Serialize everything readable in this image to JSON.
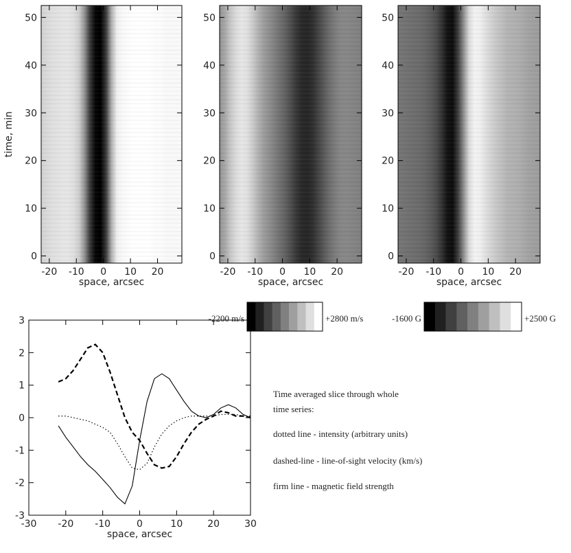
{
  "chart_data": [
    {
      "type": "heatmap",
      "ylabel": "time, min",
      "xlabel": "space, arcsec",
      "xlim": [
        -23,
        29
      ],
      "ylim": [
        -1.5,
        52.5
      ],
      "xticks": [
        -20,
        -10,
        0,
        10,
        20
      ],
      "yticks": [
        0,
        10,
        20,
        30,
        40,
        50
      ],
      "x": [
        -23,
        -21,
        -19,
        -17,
        -15,
        -13,
        -11,
        -9,
        -7,
        -5,
        -3,
        -1,
        1,
        3,
        5,
        7,
        9,
        11,
        13,
        15,
        17,
        19,
        21,
        23,
        25,
        27,
        29
      ],
      "values": [
        0.82,
        0.84,
        0.86,
        0.87,
        0.88,
        0.88,
        0.86,
        0.8,
        0.6,
        0.3,
        0.12,
        0.1,
        0.3,
        0.7,
        0.92,
        0.95,
        0.96,
        0.97,
        0.97,
        0.97,
        0.97,
        0.96,
        0.96,
        0.95,
        0.95,
        0.95,
        0.95
      ]
    },
    {
      "type": "heatmap",
      "xlabel": "space, arcsec",
      "xlim": [
        -23,
        29
      ],
      "ylim": [
        -1.5,
        52.5
      ],
      "xticks": [
        -20,
        -10,
        0,
        10,
        20
      ],
      "yticks": [
        0,
        10,
        20,
        30,
        40,
        50
      ],
      "x": [
        -23,
        -21,
        -19,
        -17,
        -15,
        -13,
        -11,
        -9,
        -7,
        -5,
        -3,
        -1,
        1,
        3,
        5,
        7,
        9,
        11,
        13,
        15,
        17,
        19,
        21,
        23,
        25,
        27,
        29
      ],
      "values": [
        700,
        1100,
        1700,
        2100,
        2300,
        2200,
        1800,
        1300,
        900,
        600,
        300,
        0,
        -300,
        -700,
        -1100,
        -1400,
        -1450,
        -1300,
        -900,
        -500,
        -100,
        200,
        400,
        450,
        400,
        350,
        300
      ],
      "colorbar": [
        {
          "value": -2200,
          "label": "-2200 m/s"
        },
        {
          "value": 2800,
          "label": "+2800 m/s"
        }
      ]
    },
    {
      "type": "heatmap",
      "xlabel": "space, arcsec",
      "xlim": [
        -23,
        29
      ],
      "ylim": [
        -1.5,
        52.5
      ],
      "xticks": [
        -20,
        -10,
        0,
        10,
        20
      ],
      "yticks": [
        0,
        10,
        20,
        30,
        40,
        50
      ],
      "x": [
        -23,
        -21,
        -19,
        -17,
        -15,
        -13,
        -11,
        -9,
        -7,
        -5,
        -3,
        -1,
        1,
        3,
        5,
        7,
        9,
        11,
        13,
        15,
        17,
        19,
        21,
        23,
        25,
        27,
        29
      ],
      "values": [
        300,
        250,
        200,
        150,
        100,
        0,
        -150,
        -400,
        -800,
        -1300,
        -1400,
        -600,
        700,
        1900,
        2300,
        2250,
        2000,
        1800,
        1600,
        1450,
        1300,
        1250,
        1200,
        1100,
        1000,
        950,
        900
      ],
      "colorbar": [
        {
          "value": -1600,
          "label": "-1600 G"
        },
        {
          "value": 2500,
          "label": "+2500 G"
        }
      ]
    },
    {
      "type": "line",
      "xlabel": "space, arcsec",
      "xlim": [
        -30,
        30
      ],
      "ylim": [
        -3,
        3
      ],
      "xticks": [
        -30,
        -20,
        -10,
        0,
        10,
        20,
        30
      ],
      "yticks": [
        -3,
        -2,
        -1,
        0,
        1,
        2,
        3
      ],
      "x": [
        -22,
        -20,
        -18,
        -16,
        -14,
        -12,
        -10,
        -8,
        -6,
        -4,
        -2,
        0,
        2,
        4,
        6,
        8,
        10,
        12,
        14,
        16,
        18,
        20,
        22,
        24,
        26,
        28,
        30
      ],
      "series": [
        {
          "color": "#000000",
          "linestyle": "dotted",
          "values": [
            0.05,
            0.05,
            0.0,
            -0.05,
            -0.1,
            -0.2,
            -0.3,
            -0.45,
            -0.8,
            -1.2,
            -1.55,
            -1.6,
            -1.4,
            -0.9,
            -0.5,
            -0.25,
            -0.1,
            0.0,
            0.05,
            0.05,
            0.05,
            0.05,
            0.1,
            0.1,
            0.1,
            0.05,
            0.05
          ]
        },
        {
          "color": "#000000",
          "linestyle": "dashed",
          "values": [
            1.1,
            1.2,
            1.45,
            1.8,
            2.15,
            2.25,
            2.0,
            1.4,
            0.7,
            0.0,
            -0.45,
            -0.7,
            -1.1,
            -1.45,
            -1.55,
            -1.5,
            -1.2,
            -0.8,
            -0.45,
            -0.2,
            -0.05,
            0.05,
            0.2,
            0.15,
            0.05,
            0.05,
            0.0
          ]
        },
        {
          "color": "#000000",
          "linestyle": "solid",
          "values": [
            -0.25,
            -0.6,
            -0.9,
            -1.2,
            -1.45,
            -1.65,
            -1.9,
            -2.15,
            -2.45,
            -2.65,
            -2.1,
            -0.7,
            0.5,
            1.2,
            1.35,
            1.2,
            0.85,
            0.5,
            0.2,
            0.05,
            0.0,
            0.1,
            0.3,
            0.4,
            0.3,
            0.1,
            0.0
          ]
        }
      ],
      "annotations": [
        "Time averaged slice through whole",
        "time series:",
        "dotted line - intensity (arbitrary units)",
        "dashed-line - line-of-sight velocity (km/s)",
        "firm line - magnetic field strength"
      ]
    }
  ]
}
